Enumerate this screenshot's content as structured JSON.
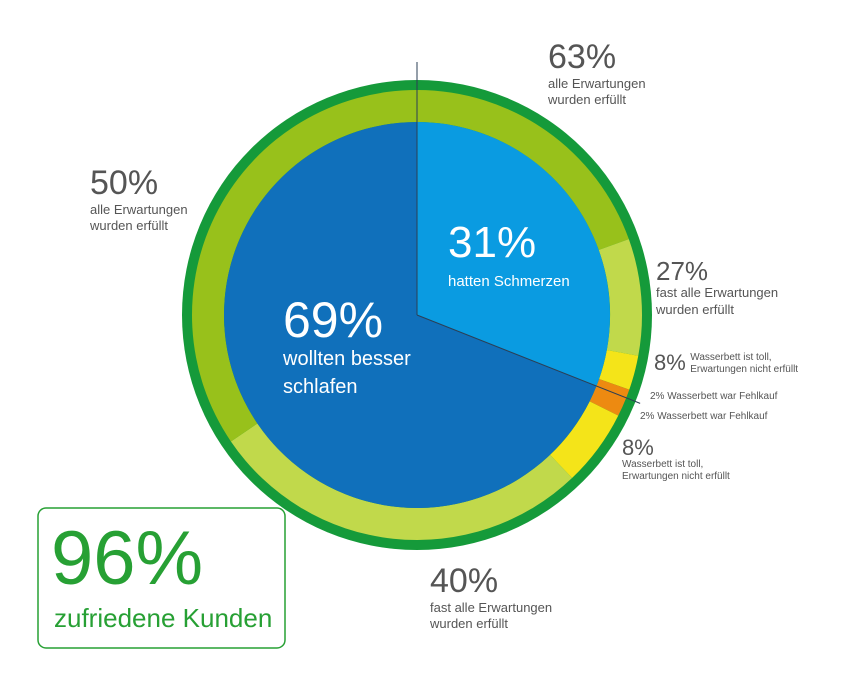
{
  "chart_data": {
    "type": "pie",
    "center_total": {
      "value": "96%",
      "label": "zufriedene Kunden"
    },
    "inner": [
      {
        "value": 69,
        "label": "69%",
        "name_lines": [
          "wollten besser",
          "schlafen"
        ],
        "color": "#1070bb"
      },
      {
        "value": 31,
        "label": "31%",
        "name_lines": [
          "hatten Schmerzen"
        ],
        "color": "#0a9be1"
      }
    ],
    "outer": [
      {
        "value": 63,
        "label": "63%",
        "text_lines": [
          "alle Erwartungen",
          "wurden erfüllt"
        ],
        "group": "hatten Schmerzen",
        "color": "#98c11b"
      },
      {
        "value": 27,
        "label": "27%",
        "text_lines": [
          "fast alle Erwartungen",
          "wurden erfüllt"
        ],
        "group": "hatten Schmerzen",
        "color": "#c1d94b"
      },
      {
        "value": 8,
        "label": "8%",
        "text_lines": [
          "Wasserbett ist toll,",
          "Erwartungen nicht erfüllt"
        ],
        "group": "hatten Schmerzen",
        "color": "#f4e419"
      },
      {
        "value": 2,
        "label": "2%",
        "text_lines": [
          "Wasserbett war Fehlkauf"
        ],
        "group": "hatten Schmerzen",
        "color": "#ed8a11"
      },
      {
        "value": 2,
        "label": "2%",
        "text_lines": [
          "Wasserbett war Fehlkauf"
        ],
        "group": "wollten besser schlafen",
        "color": "#ed8a11"
      },
      {
        "value": 8,
        "label": "8%",
        "text_lines": [
          "Wasserbett ist toll,",
          "Erwartungen nicht erfüllt"
        ],
        "group": "wollten besser schlafen",
        "color": "#f4e419"
      },
      {
        "value": 40,
        "label": "40%",
        "text_lines": [
          "fast alle Erwartungen",
          "wurden erfüllt"
        ],
        "group": "wollten besser schlafen",
        "color": "#c1d94b"
      },
      {
        "value": 50,
        "label": "50%",
        "text_lines": [
          "alle Erwartungen",
          "wurden erfüllt"
        ],
        "group": "wollten besser schlafen",
        "color": "#98c11b"
      }
    ],
    "colors": {
      "frame": "#159a3a",
      "callout": "#27a034",
      "label_text": "#555555"
    }
  }
}
